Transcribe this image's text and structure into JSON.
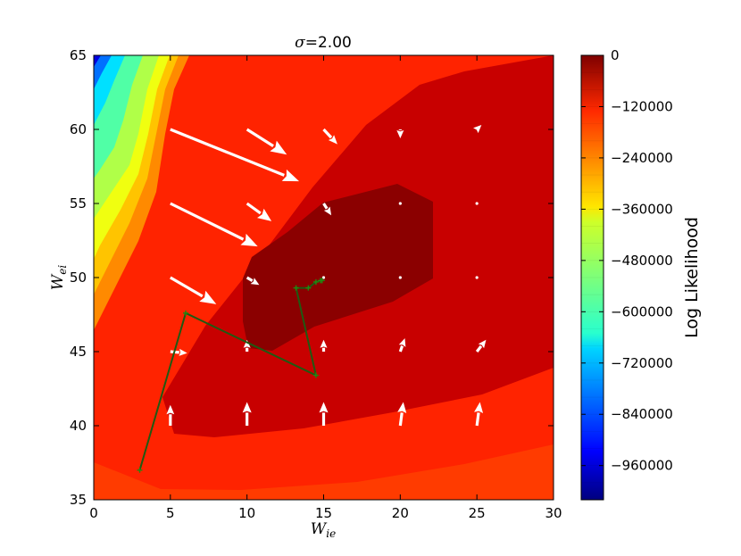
{
  "chart_data": {
    "type": "contour",
    "title": "σ=2.00",
    "xlabel": "W_ie",
    "ylabel": "W_ei",
    "xlim": [
      0,
      30
    ],
    "ylim": [
      35,
      65
    ],
    "x_ticks": [
      "0",
      "5",
      "10",
      "15",
      "20",
      "25",
      "30"
    ],
    "y_ticks": [
      "35",
      "40",
      "45",
      "50",
      "55",
      "60",
      "65"
    ],
    "colorbar": {
      "label": "Log Likelihood",
      "range": [
        -1040000,
        0
      ],
      "ticks": [
        "0",
        "−120000",
        "−240000",
        "−360000",
        "−480000",
        "−600000",
        "−720000",
        "−840000",
        "−960000"
      ],
      "tick_values": [
        0,
        -120000,
        -240000,
        -360000,
        -480000,
        -600000,
        -720000,
        -840000,
        -960000
      ],
      "colormap": "jet",
      "levels": 26
    },
    "quiver": [
      {
        "x": 5,
        "y": 60,
        "u": 8.4,
        "v": -3.5
      },
      {
        "x": 10,
        "y": 60,
        "u": 2.6,
        "v": -1.7
      },
      {
        "x": 15,
        "y": 60,
        "u": 0.9,
        "v": -1.0
      },
      {
        "x": 20,
        "y": 60,
        "u": 0.0,
        "v": -0.6
      },
      {
        "x": 25,
        "y": 60,
        "u": 0.3,
        "v": 0.3
      },
      {
        "x": 5,
        "y": 55,
        "u": 5.7,
        "v": -2.9
      },
      {
        "x": 10,
        "y": 55,
        "u": 1.6,
        "v": -1.2
      },
      {
        "x": 15,
        "y": 55,
        "u": 0.5,
        "v": -0.8
      },
      {
        "x": 20,
        "y": 55,
        "u": 0.0,
        "v": 0.0
      },
      {
        "x": 25,
        "y": 55,
        "u": 0.0,
        "v": 0.0
      },
      {
        "x": 5,
        "y": 50,
        "u": 3.0,
        "v": -1.8
      },
      {
        "x": 10,
        "y": 50,
        "u": 0.8,
        "v": -0.5
      },
      {
        "x": 15,
        "y": 50,
        "u": 0.0,
        "v": 0.0
      },
      {
        "x": 20,
        "y": 50,
        "u": 0.0,
        "v": 0.0
      },
      {
        "x": 25,
        "y": 50,
        "u": 0.0,
        "v": 0.0
      },
      {
        "x": 5,
        "y": 45,
        "u": 1.1,
        "v": -0.1
      },
      {
        "x": 10,
        "y": 45,
        "u": 0.0,
        "v": 0.8
      },
      {
        "x": 15,
        "y": 45,
        "u": 0.0,
        "v": 0.8
      },
      {
        "x": 20,
        "y": 45,
        "u": 0.3,
        "v": 0.9
      },
      {
        "x": 25,
        "y": 45,
        "u": 0.6,
        "v": 0.8
      },
      {
        "x": 5,
        "y": 40,
        "u": 0.0,
        "v": 1.4
      },
      {
        "x": 10,
        "y": 40,
        "u": 0.0,
        "v": 1.6
      },
      {
        "x": 15,
        "y": 40,
        "u": 0.0,
        "v": 1.6
      },
      {
        "x": 20,
        "y": 40,
        "u": 0.2,
        "v": 1.6
      },
      {
        "x": 25,
        "y": 40,
        "u": 0.2,
        "v": 1.6
      }
    ],
    "trajectory": [
      {
        "x": 3.0,
        "y": 37.0
      },
      {
        "x": 6.0,
        "y": 47.6
      },
      {
        "x": 14.5,
        "y": 43.4
      },
      {
        "x": 13.2,
        "y": 49.3
      },
      {
        "x": 14.0,
        "y": 49.3
      },
      {
        "x": 14.5,
        "y": 49.7
      },
      {
        "x": 14.8,
        "y": 49.8
      },
      {
        "x": 14.9,
        "y": 49.8
      }
    ]
  }
}
